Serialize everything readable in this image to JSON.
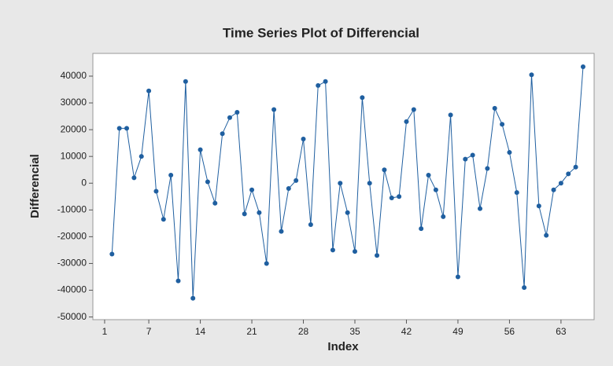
{
  "chart_data": {
    "type": "line",
    "title": "Time Series Plot of Differencial",
    "x_label": "Index",
    "y_label": "Differencial",
    "x": [
      1,
      2,
      3,
      4,
      5,
      6,
      7,
      8,
      9,
      10,
      11,
      12,
      13,
      14,
      15,
      16,
      17,
      18,
      19,
      20,
      21,
      22,
      23,
      24,
      25,
      26,
      27,
      28,
      29,
      30,
      31,
      32,
      33,
      34,
      35,
      36,
      37,
      38,
      39,
      40,
      41,
      42,
      43,
      44,
      45,
      46,
      47,
      48,
      49,
      50,
      51,
      52,
      53,
      54,
      55,
      56,
      57,
      58,
      59,
      60,
      61,
      62,
      63,
      64,
      65,
      66
    ],
    "series": [
      {
        "name": "Differencial",
        "color": "#1f5fa0",
        "values": [
          null,
          -26500,
          20500,
          20500,
          2000,
          10000,
          34500,
          -3000,
          -13500,
          3000,
          -36500,
          38000,
          -43000,
          12500,
          500,
          -7500,
          18500,
          24500,
          26500,
          -11500,
          -2500,
          -11000,
          -30000,
          27500,
          -18000,
          -2000,
          1000,
          16500,
          -15500,
          36500,
          38000,
          -25000,
          0,
          -11000,
          -25500,
          32000,
          0,
          -27000,
          5000,
          -5500,
          -5000,
          23000,
          27500,
          -17000,
          3000,
          -2500,
          -12500,
          25500,
          -35000,
          9000,
          10500,
          -9500,
          5500,
          28000,
          22000,
          11500,
          -3500,
          -39000,
          40500,
          -8500,
          -19500,
          -2500,
          0,
          3500,
          6000,
          43500
        ]
      }
    ],
    "xlim": [
      -0.6,
      67.5
    ],
    "xticks": [
      1,
      7,
      14,
      21,
      28,
      35,
      42,
      49,
      56,
      63
    ],
    "ylim": [
      -51000,
      48500
    ],
    "yticks": [
      -50000,
      -40000,
      -30000,
      -20000,
      -10000,
      0,
      10000,
      20000,
      30000,
      40000
    ]
  }
}
